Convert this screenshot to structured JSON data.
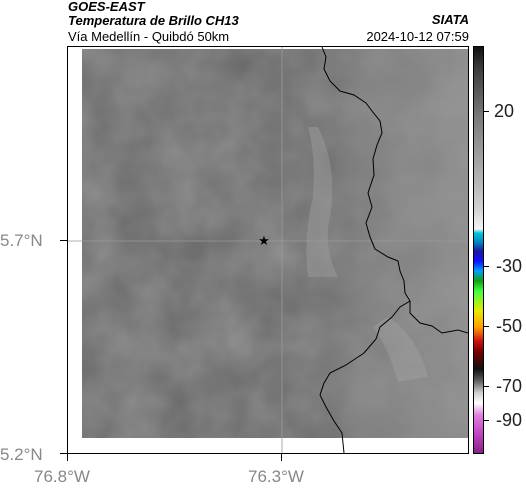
{
  "header": {
    "satellite": "GOES-EAST",
    "product": "Temperatura de Brillo CH13",
    "region": "Vía Medellín - Quibdó 50km",
    "source": "SIATA",
    "timestamp": "2024-10-12 07:59"
  },
  "map": {
    "lat_labels": [
      "5.7°N",
      "5.2°N"
    ],
    "lon_labels": [
      "76.8°W",
      "76.3°W"
    ],
    "marker": "star",
    "base_color": "#6b6b6b",
    "border_color": "#000000"
  },
  "colorbar": {
    "ticks": [
      "20",
      "-30",
      "-50",
      "-70",
      "-90"
    ],
    "colors": {
      "top": "#111111",
      "mid_gray": "#cfcfcf",
      "cyan": "#00c8d8",
      "blue": "#1a1aa0",
      "green": "#10a010",
      "yellow": "#e8e800",
      "red": "#d01010",
      "bottom": "#c040c0"
    }
  }
}
